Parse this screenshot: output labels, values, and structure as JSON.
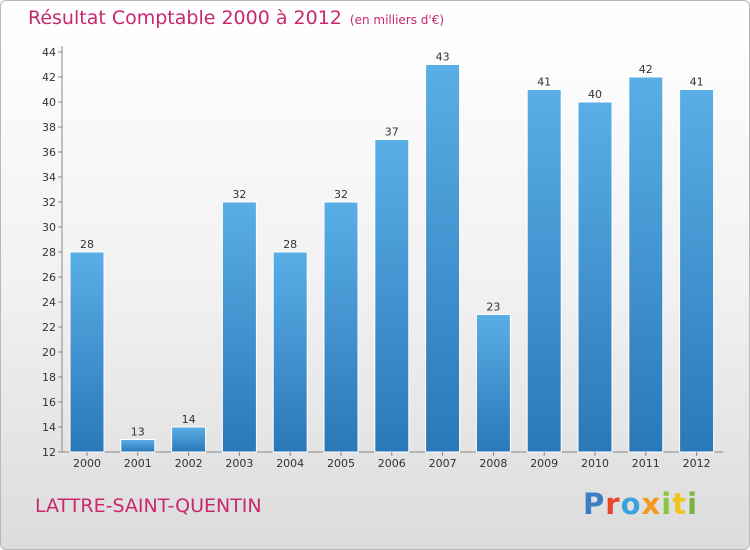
{
  "header": {
    "title": "Résultat Comptable 2000 à 2012",
    "subtitle": "(en milliers d'€)"
  },
  "footer": {
    "city": "LATTRE-SAINT-QUENTIN",
    "logo": [
      "P",
      "r",
      "o",
      "x",
      "i",
      "t",
      "i"
    ]
  },
  "colors": {
    "bar_top": "#5aaee6",
    "bar_bottom": "#2a78b8",
    "title": "#c8286e"
  },
  "chart_data": {
    "type": "bar",
    "title": "Résultat Comptable 2000 à 2012",
    "xlabel": "",
    "ylabel": "",
    "categories": [
      "2000",
      "2001",
      "2002",
      "2003",
      "2004",
      "2005",
      "2006",
      "2007",
      "2008",
      "2009",
      "2010",
      "2011",
      "2012"
    ],
    "values": [
      28,
      13,
      14,
      32,
      28,
      32,
      37,
      43,
      23,
      41,
      40,
      42,
      41
    ],
    "ylim": [
      12,
      44
    ],
    "yticks": [
      12,
      14,
      16,
      18,
      20,
      22,
      24,
      26,
      28,
      30,
      32,
      34,
      36,
      38,
      40,
      42,
      44
    ],
    "grid": false,
    "data_labels": true
  }
}
